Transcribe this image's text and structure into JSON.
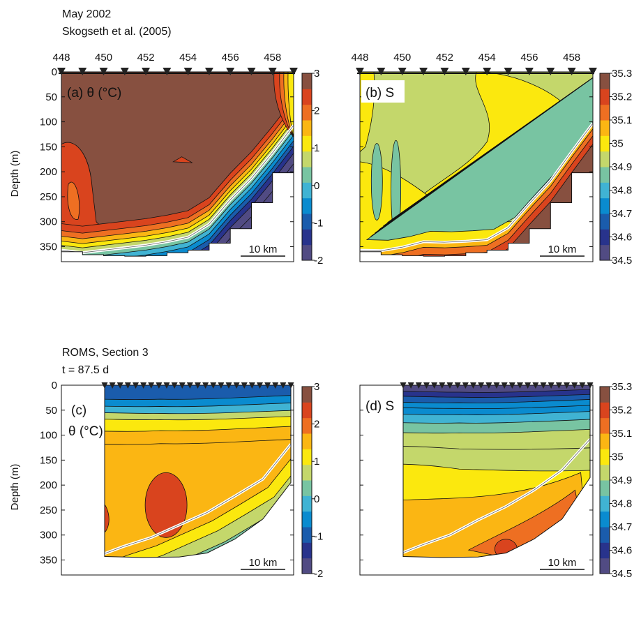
{
  "header": {
    "obs_period": "May 2002",
    "obs_source": "Skogseth et al. (2005)",
    "model_name": "ROMS, Section 3",
    "model_time": "t = 87.5 d"
  },
  "chart_data": [
    {
      "panel": "a",
      "type": "contour",
      "label": "(a) θ (°C)",
      "field": "potential temperature",
      "ylabel": "Depth (m)",
      "yticks": [
        0,
        50,
        100,
        150,
        200,
        250,
        300,
        350
      ],
      "ylim": [
        0,
        380
      ],
      "station_ticks": [
        "448",
        "450",
        "452",
        "454",
        "456",
        "458"
      ],
      "station_range": [
        448,
        459
      ],
      "colorbar": {
        "ticks": [
          "3",
          "2",
          "1",
          "0",
          "-1",
          "-2"
        ],
        "range": [
          -2,
          3
        ]
      },
      "scalebar": "10 km",
      "bottom_profile": [
        [
          448,
          360
        ],
        [
          449,
          366
        ],
        [
          450,
          368
        ],
        [
          451,
          369
        ],
        [
          452,
          368
        ],
        [
          453,
          362
        ],
        [
          454,
          357
        ],
        [
          455,
          343
        ],
        [
          456,
          314
        ],
        [
          457,
          262
        ],
        [
          458,
          202
        ],
        [
          459,
          122
        ]
      ],
      "isoline_profile": [
        [
          448,
          357
        ],
        [
          449,
          362
        ],
        [
          450,
          357
        ],
        [
          451,
          352
        ],
        [
          452,
          347
        ],
        [
          453,
          340
        ],
        [
          454,
          331
        ],
        [
          455,
          305
        ],
        [
          456,
          256
        ],
        [
          457,
          213
        ],
        [
          458,
          162
        ],
        [
          459,
          107
        ]
      ],
      "dominant_values": {
        "core": 3,
        "west_boundary": 2.6,
        "bottom": -1.5
      }
    },
    {
      "panel": "b",
      "type": "contour",
      "label": "(b) S",
      "field": "salinity",
      "ylabel": "",
      "yticks": [
        0,
        50,
        100,
        150,
        200,
        250,
        300,
        350
      ],
      "ylim": [
        0,
        380
      ],
      "station_ticks": [
        "448",
        "450",
        "452",
        "454",
        "456",
        "458"
      ],
      "station_range": [
        448,
        459
      ],
      "colorbar": {
        "ticks": [
          "35.3",
          "35.2",
          "35.1",
          "35",
          "34.9",
          "34.8",
          "34.7",
          "34.6",
          "34.5"
        ],
        "range": [
          34.5,
          35.3
        ]
      },
      "scalebar": "10 km",
      "bottom_profile": [
        [
          448,
          360
        ],
        [
          449,
          366
        ],
        [
          450,
          368
        ],
        [
          451,
          369
        ],
        [
          452,
          368
        ],
        [
          453,
          362
        ],
        [
          454,
          357
        ],
        [
          455,
          343
        ],
        [
          456,
          314
        ],
        [
          457,
          262
        ],
        [
          458,
          202
        ],
        [
          459,
          122
        ]
      ],
      "isoline_profile": [
        [
          448,
          357
        ],
        [
          449,
          358
        ],
        [
          450,
          351
        ],
        [
          451,
          340
        ],
        [
          452,
          341
        ],
        [
          453,
          339
        ],
        [
          454,
          336
        ],
        [
          455,
          312
        ],
        [
          456,
          264
        ],
        [
          457,
          218
        ],
        [
          458,
          160
        ],
        [
          459,
          103
        ]
      ],
      "dominant_values": {
        "interior": 34.95,
        "core": 35.05,
        "bottom": 35.3
      }
    },
    {
      "panel": "c",
      "type": "contour",
      "label": "(c) θ (°C)",
      "field": "potential temperature",
      "ylabel": "Depth (m)",
      "yticks": [
        0,
        50,
        100,
        150,
        200,
        250,
        300,
        350
      ],
      "ylim": [
        0,
        380
      ],
      "colorbar": {
        "ticks": [
          "3",
          "2",
          "1",
          "0",
          "-1",
          "-2"
        ],
        "range": [
          -2,
          3
        ]
      },
      "scalebar": "10 km",
      "section_extent": [
        0,
        1
      ],
      "station_count": 25,
      "bottom_profile": [
        [
          0,
          343
        ],
        [
          0.2,
          345
        ],
        [
          0.4,
          344
        ],
        [
          0.55,
          336
        ],
        [
          0.7,
          308
        ],
        [
          0.85,
          268
        ],
        [
          1,
          195
        ]
      ],
      "isoline_profile": [
        [
          0,
          337
        ],
        [
          0.1,
          323
        ],
        [
          0.25,
          305
        ],
        [
          0.4,
          280
        ],
        [
          0.55,
          255
        ],
        [
          0.7,
          222
        ],
        [
          0.85,
          188
        ],
        [
          1,
          118
        ]
      ],
      "layers": [
        {
          "value": -1.0,
          "depth_west": 28,
          "depth_east": 20
        },
        {
          "value": -0.5,
          "depth_west": 42,
          "depth_east": 35
        },
        {
          "value": 0.0,
          "depth_west": 55,
          "depth_east": 50
        },
        {
          "value": 0.5,
          "depth_west": 68,
          "depth_east": 62
        },
        {
          "value": 1.0,
          "depth_west": 92,
          "depth_east": 82
        },
        {
          "value": 1.5,
          "depth_west": 118,
          "depth_east": 108
        }
      ],
      "warm_core": {
        "value": 2.5,
        "depth_range": [
          175,
          305
        ]
      }
    },
    {
      "panel": "d",
      "type": "contour",
      "label": "(d) S",
      "field": "salinity",
      "ylabel": "",
      "yticks": [
        0,
        50,
        100,
        150,
        200,
        250,
        300,
        350
      ],
      "ylim": [
        0,
        380
      ],
      "colorbar": {
        "ticks": [
          "35.3",
          "35.2",
          "35.1",
          "35",
          "34.9",
          "34.8",
          "34.7",
          "34.6",
          "34.5"
        ],
        "range": [
          34.5,
          35.3
        ]
      },
      "scalebar": "10 km",
      "section_extent": [
        0,
        1
      ],
      "station_count": 25,
      "bottom_profile": [
        [
          0,
          343
        ],
        [
          0.2,
          345
        ],
        [
          0.4,
          344
        ],
        [
          0.55,
          336
        ],
        [
          0.7,
          308
        ],
        [
          0.85,
          268
        ],
        [
          1,
          185
        ]
      ],
      "isoline_profile": [
        [
          0,
          335
        ],
        [
          0.1,
          320
        ],
        [
          0.25,
          300
        ],
        [
          0.4,
          270
        ],
        [
          0.55,
          243
        ],
        [
          0.7,
          210
        ],
        [
          0.85,
          170
        ],
        [
          1,
          108
        ]
      ],
      "layers": [
        {
          "value": 34.55,
          "depth_west": 12,
          "depth_east": 8
        },
        {
          "value": 34.6,
          "depth_west": 22,
          "depth_east": 18
        },
        {
          "value": 34.65,
          "depth_west": 34,
          "depth_east": 28
        },
        {
          "value": 34.7,
          "depth_west": 45,
          "depth_east": 40
        },
        {
          "value": 34.75,
          "depth_west": 58,
          "depth_east": 52
        },
        {
          "value": 34.8,
          "depth_west": 75,
          "depth_east": 68
        },
        {
          "value": 34.85,
          "depth_west": 95,
          "depth_east": 88
        },
        {
          "value": 34.9,
          "depth_west": 122,
          "depth_east": 125
        },
        {
          "value": 34.95,
          "depth_west": 158,
          "depth_east": 170
        }
      ],
      "deep_core": {
        "value": 35.05,
        "depth_range": [
          220,
          340
        ]
      },
      "max_core": {
        "value": 35.1,
        "depth_range": [
          300,
          340
        ]
      }
    }
  ],
  "colors": {
    "temperature_bins": [
      "#514b83",
      "#28338c",
      "#1a5cac",
      "#0a8bcf",
      "#40b3d3",
      "#78c4a2",
      "#c4d76b",
      "#fbe80e",
      "#fbb613",
      "#ee6f22",
      "#d9441e",
      "#875040"
    ],
    "salinity_bins": [
      "#514b83",
      "#28338c",
      "#1a5cac",
      "#0a8bcf",
      "#40b3d3",
      "#78c4a2",
      "#c4d76b",
      "#fbe80e",
      "#fbb613",
      "#ee6f22",
      "#d9441e",
      "#875040"
    ],
    "isoline": "#ffffff",
    "contour_line": "#111111",
    "station_marker": "#222222"
  }
}
